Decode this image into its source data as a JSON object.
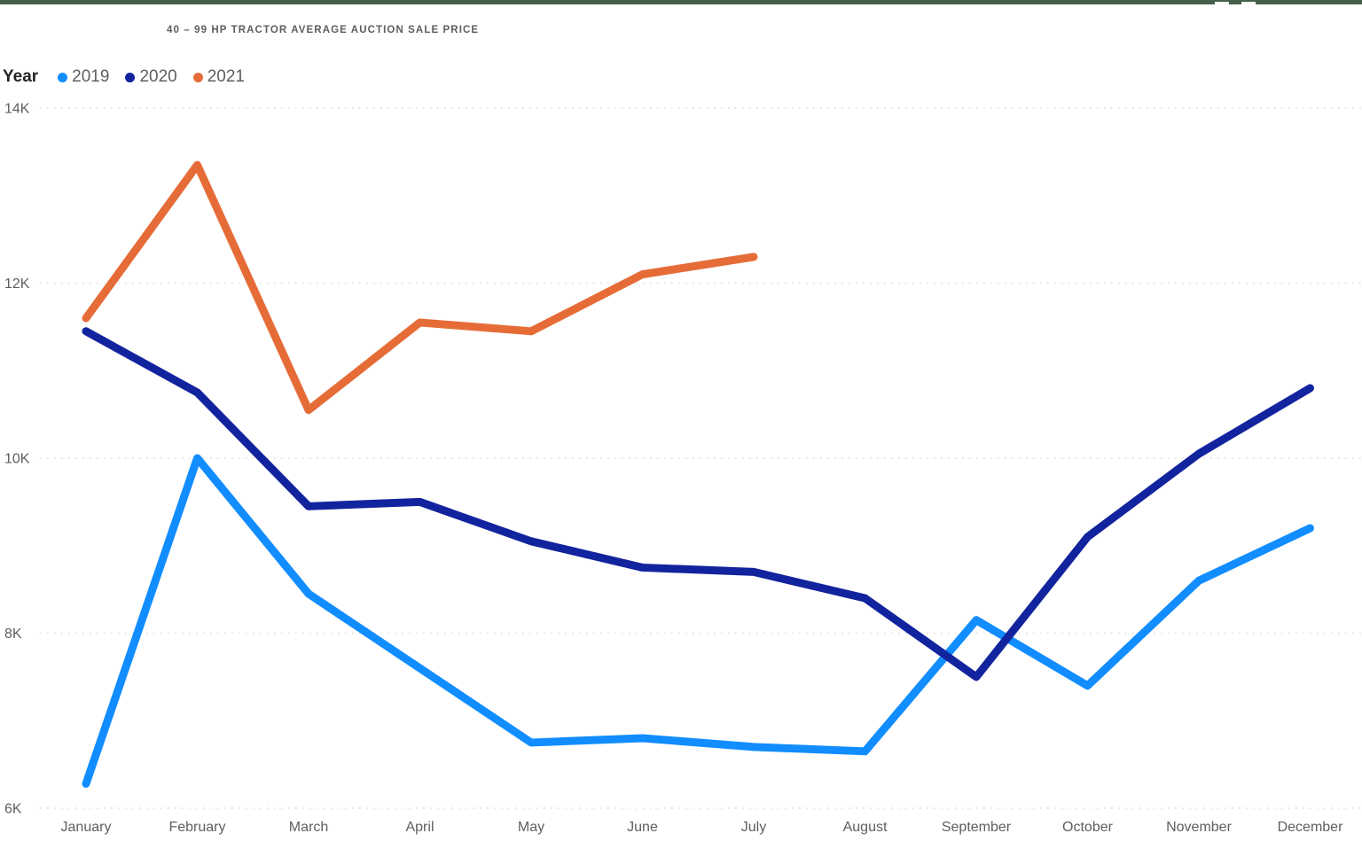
{
  "window": {
    "topbar_color": "#47604C"
  },
  "header": {
    "title": "40 – 99 HP TRACTOR AVERAGE AUCTION SALE PRICE"
  },
  "legend": {
    "label": "Year"
  },
  "axis": {
    "y_tick_labels": [
      "6K",
      "8K",
      "10K",
      "12K",
      "14K"
    ],
    "tick_color": "#605E5C"
  },
  "chart_data": {
    "type": "line",
    "title": "40 – 99 HP TRACTOR AVERAGE AUCTION SALE PRICE",
    "xlabel": "",
    "ylabel": "",
    "categories": [
      "January",
      "February",
      "March",
      "April",
      "May",
      "June",
      "July",
      "August",
      "September",
      "October",
      "November",
      "December"
    ],
    "series": [
      {
        "name": "2019",
        "color": "#118DFF",
        "values": [
          6280,
          10000,
          8450,
          7600,
          6750,
          6800,
          6700,
          6650,
          8150,
          7400,
          8600,
          9200
        ]
      },
      {
        "name": "2020",
        "color": "#12239E",
        "values": [
          11450,
          10750,
          9450,
          9500,
          9050,
          8750,
          8700,
          8400,
          7500,
          9100,
          10050,
          10800
        ]
      },
      {
        "name": "2021",
        "color": "#E66C37",
        "values": [
          11600,
          13350,
          10550,
          11550,
          11450,
          12100,
          12300
        ]
      }
    ],
    "ylim": [
      6000,
      14000
    ],
    "yticks": [
      {
        "value": 6000,
        "label": "6K"
      },
      {
        "value": 8000,
        "label": "8K"
      },
      {
        "value": 10000,
        "label": "10K"
      },
      {
        "value": 12000,
        "label": "12K"
      },
      {
        "value": 14000,
        "label": "14K"
      }
    ],
    "grid": "horizontal-dotted",
    "legend_position": "top-left"
  }
}
